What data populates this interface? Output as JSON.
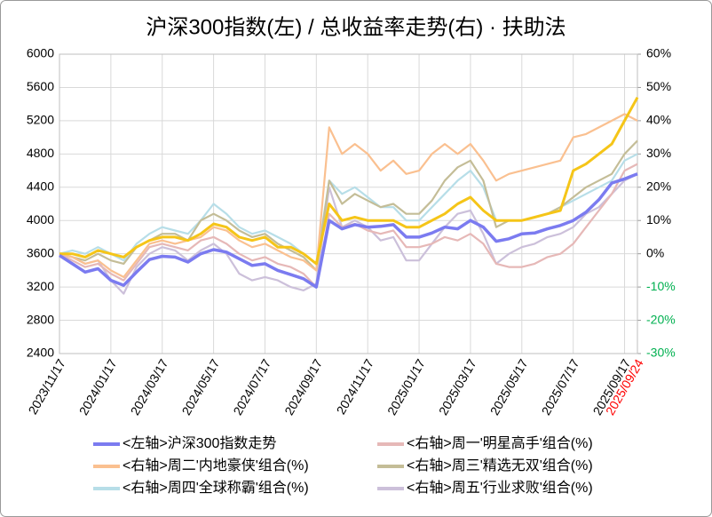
{
  "chart_data": {
    "type": "line",
    "title": "沪深300指数(左)  /  总收益率走势(右) · 扶助法",
    "categories": [
      "2023/11/17",
      null,
      null,
      null,
      "2024/01/17",
      null,
      null,
      null,
      "2024/03/17",
      null,
      null,
      null,
      "2024/05/17",
      null,
      null,
      null,
      "2024/07/17",
      null,
      null,
      null,
      "2024/09/17",
      null,
      null,
      null,
      "2024/11/17",
      null,
      null,
      null,
      "2025/01/17",
      null,
      null,
      null,
      "2025/03/17",
      null,
      null,
      null,
      "2025/05/17",
      null,
      null,
      null,
      "2025/07/17",
      null,
      null,
      null,
      "2025/09/17",
      "2025/09/24"
    ],
    "ylim": [
      2400,
      6000
    ],
    "yticks": [
      2400,
      2800,
      3200,
      3600,
      4000,
      4400,
      4800,
      5200,
      5600,
      6000
    ],
    "y2lim": [
      -30,
      60
    ],
    "y2ticks": [
      {
        "value": -30,
        "label": "-30%"
      },
      {
        "value": -20,
        "label": "-20%"
      },
      {
        "value": -10,
        "label": "-10%"
      },
      {
        "value": 0,
        "label": "0%"
      },
      {
        "value": 10,
        "label": "10%"
      },
      {
        "value": 20,
        "label": "20%"
      },
      {
        "value": 30,
        "label": "30%"
      },
      {
        "value": 40,
        "label": "40%"
      },
      {
        "value": 50,
        "label": "50%"
      },
      {
        "value": 60,
        "label": "60%"
      }
    ],
    "negative_tick_color": "#00b050",
    "last_label_color": "#ff0000",
    "grid": true,
    "series": [
      {
        "name": "<左轴>沪深300指数走势",
        "color": "#7b7bf0",
        "axis": "y",
        "values": [
          3580,
          3480,
          3380,
          3420,
          3280,
          3220,
          3380,
          3530,
          3570,
          3560,
          3500,
          3600,
          3650,
          3620,
          3540,
          3460,
          3480,
          3400,
          3350,
          3300,
          3200,
          4000,
          3900,
          3950,
          3920,
          3930,
          3950,
          3800,
          3800,
          3850,
          3920,
          3900,
          4000,
          3920,
          3750,
          3780,
          3840,
          3850,
          3900,
          3940,
          4000,
          4100,
          4250,
          4450,
          4500,
          4560
        ]
      },
      {
        "name": "<右轴>周一'明星高手'组合(%)",
        "color": "#e6b8b7",
        "axis": "y2",
        "values": [
          0,
          -2,
          -4,
          -3,
          -6,
          -8,
          -3,
          2,
          3,
          2,
          1,
          4,
          5,
          3,
          0,
          -2,
          -1,
          -3,
          -4,
          -6,
          -10,
          12,
          8,
          9,
          7,
          6,
          7,
          2,
          2,
          3,
          5,
          4,
          6,
          3,
          -3,
          -4,
          -4,
          -3,
          -1,
          0,
          3,
          8,
          13,
          18,
          25,
          27
        ]
      },
      {
        "name": "<右轴>周二'内地豪侠'组合(%)",
        "color": "#fac090",
        "axis": "y2",
        "values": [
          0,
          -1,
          -3,
          -2,
          -5,
          -7,
          -2,
          3,
          4,
          3,
          4,
          5,
          8,
          7,
          4,
          2,
          3,
          1,
          -1,
          -2,
          -5,
          38,
          30,
          33,
          30,
          25,
          28,
          24,
          25,
          30,
          33,
          30,
          33,
          28,
          22,
          24,
          25,
          26,
          27,
          28,
          35,
          36,
          38,
          40,
          42,
          40
        ]
      },
      {
        "name": "<右轴>周三'精选无双'组合(%)",
        "color": "#c4bd97",
        "axis": "y2",
        "values": [
          0,
          -1,
          -2,
          0,
          -2,
          -3,
          2,
          4,
          6,
          6,
          4,
          10,
          12,
          10,
          7,
          5,
          6,
          3,
          1,
          -1,
          -5,
          22,
          15,
          18,
          16,
          14,
          15,
          12,
          12,
          16,
          22,
          26,
          28,
          22,
          8,
          10,
          10,
          11,
          12,
          14,
          17,
          20,
          22,
          24,
          30,
          34
        ]
      },
      {
        "name": "<右轴>周四'全球称霸'组合(%)",
        "color": "#b7dee8",
        "axis": "y2",
        "values": [
          0,
          1,
          0,
          2,
          0,
          -2,
          3,
          6,
          8,
          7,
          6,
          10,
          15,
          12,
          8,
          6,
          7,
          5,
          3,
          0,
          -3,
          22,
          18,
          20,
          17,
          14,
          14,
          10,
          10,
          14,
          18,
          22,
          25,
          20,
          10,
          10,
          10,
          11,
          12,
          14,
          16,
          18,
          20,
          22,
          28,
          30
        ]
      },
      {
        "name": "<右轴>周五'行业求败'组合(%)",
        "color": "#ccc0da",
        "axis": "y2",
        "values": [
          0,
          -1,
          -3,
          -2,
          -8,
          -12,
          -4,
          0,
          2,
          1,
          -2,
          1,
          3,
          0,
          -6,
          -8,
          -7,
          -8,
          -10,
          -11,
          -9,
          20,
          8,
          10,
          8,
          4,
          5,
          -2,
          -2,
          3,
          8,
          12,
          13,
          6,
          -3,
          0,
          2,
          3,
          5,
          6,
          8,
          12,
          14,
          18,
          22,
          24
        ]
      },
      {
        "color": "#f5c518",
        "axis": "y2",
        "values": [
          0,
          0,
          -1,
          1,
          0,
          -1,
          2,
          4,
          5,
          5,
          4,
          6,
          9,
          8,
          5,
          4,
          5,
          2,
          2,
          0,
          -3,
          15,
          10,
          11,
          10,
          10,
          10,
          8,
          8,
          10,
          12,
          15,
          17,
          13,
          10,
          10,
          10,
          11,
          12,
          13,
          25,
          27,
          30,
          33,
          40,
          47
        ]
      }
    ]
  }
}
